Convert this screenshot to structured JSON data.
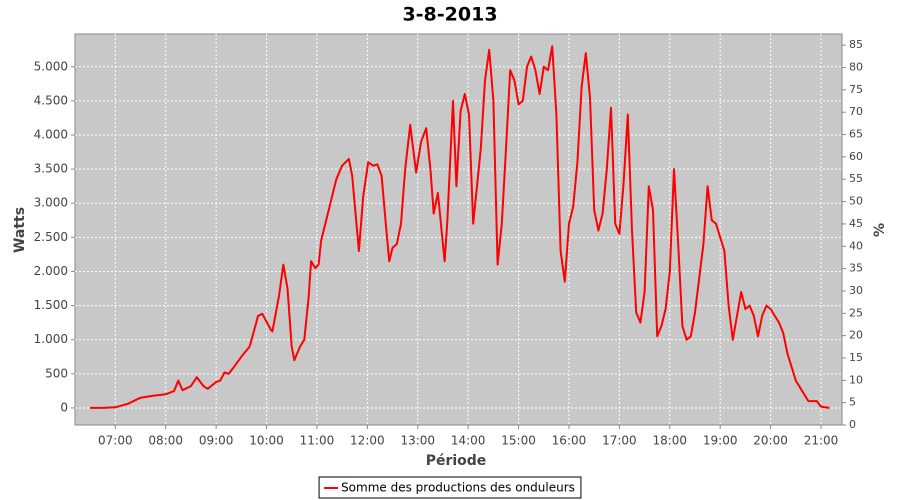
{
  "chart_data": {
    "type": "line",
    "title": "3-8-2013",
    "x_label": "Période",
    "y_label": "Watts",
    "y2_label": "%",
    "x": [
      390,
      405,
      420,
      435,
      450,
      465,
      480,
      490,
      495,
      500,
      510,
      517,
      525,
      530,
      540,
      545,
      550,
      555,
      560,
      570,
      580,
      590,
      595,
      605,
      607,
      615,
      620,
      625,
      630,
      633,
      640,
      645,
      650,
      653,
      658,
      662,
      665,
      676,
      683,
      690,
      698,
      702,
      710,
      715,
      721,
      727,
      732,
      737,
      742,
      746,
      750,
      755,
      760,
      765,
      771,
      778,
      784,
      790,
      795,
      799,
      804,
      812,
      815,
      822,
      826,
      831,
      836,
      841,
      846,
      855,
      860,
      865,
      870,
      875,
      880,
      885,
      890,
      895,
      900,
      905,
      910,
      915,
      920,
      925,
      930,
      935,
      940,
      945,
      950,
      955,
      960,
      965,
      970,
      975,
      980,
      985,
      990,
      995,
      1000,
      1005,
      1010,
      1015,
      1020,
      1025,
      1030,
      1035,
      1040,
      1045,
      1050,
      1055,
      1060,
      1065,
      1070,
      1075,
      1080,
      1085,
      1090,
      1095,
      1100,
      1105,
      1110,
      1120,
      1125,
      1130,
      1135,
      1145,
      1150,
      1155,
      1160,
      1165,
      1170,
      1175,
      1180,
      1185,
      1190,
      1195,
      1200,
      1210,
      1215,
      1220,
      1230,
      1240,
      1245,
      1255,
      1260,
      1270
    ],
    "series": [
      {
        "name": "Somme des productions des onduleurs",
        "color": "#ff0000",
        "values": [
          0,
          0,
          10,
          60,
          150,
          180,
          200,
          250,
          400,
          260,
          320,
          450,
          320,
          280,
          380,
          400,
          520,
          500,
          580,
          750,
          900,
          1350,
          1380,
          1150,
          1120,
          1650,
          2100,
          1750,
          900,
          700,
          900,
          1000,
          1600,
          2150,
          2050,
          2100,
          2450,
          3000,
          3350,
          3550,
          3650,
          3400,
          2300,
          3100,
          3600,
          3550,
          3570,
          3400,
          2700,
          2150,
          2350,
          2400,
          2700,
          3500,
          4150,
          3450,
          3900,
          4100,
          3500,
          2850,
          3150,
          2150,
          2700,
          4500,
          3250,
          4350,
          4600,
          4300,
          2700,
          3800,
          4800,
          5250,
          4500,
          2100,
          2700,
          3800,
          4950,
          4800,
          4450,
          4500,
          5000,
          5150,
          4950,
          4600,
          5000,
          4950,
          5300,
          4300,
          2300,
          1850,
          2700,
          2950,
          3600,
          4700,
          5200,
          4550,
          2900,
          2600,
          2850,
          3500,
          4400,
          2700,
          2550,
          3300,
          4300,
          2600,
          1400,
          1250,
          1700,
          3250,
          2900,
          1050,
          1200,
          1450,
          2000,
          3500,
          2400,
          1200,
          1000,
          1050,
          1400,
          2400,
          3250,
          2750,
          2700,
          2300,
          1500,
          1000,
          1350,
          1700,
          1450,
          1500,
          1350,
          1050,
          1350,
          1500,
          1450,
          1250,
          1100,
          800,
          400,
          200,
          100,
          100,
          20,
          0
        ]
      }
    ],
    "xlim": [
      372,
      1285
    ],
    "xticks": [
      {
        "value": 420,
        "label": "07:00"
      },
      {
        "value": 480,
        "label": "08:00"
      },
      {
        "value": 540,
        "label": "09:00"
      },
      {
        "value": 600,
        "label": "10:00"
      },
      {
        "value": 660,
        "label": "11:00"
      },
      {
        "value": 720,
        "label": "12:00"
      },
      {
        "value": 780,
        "label": "13:00"
      },
      {
        "value": 840,
        "label": "14:00"
      },
      {
        "value": 900,
        "label": "15:00"
      },
      {
        "value": 960,
        "label": "16:00"
      },
      {
        "value": 1020,
        "label": "17:00"
      },
      {
        "value": 1080,
        "label": "18:00"
      },
      {
        "value": 1140,
        "label": "19:00"
      },
      {
        "value": 1200,
        "label": "20:00"
      },
      {
        "value": 1260,
        "label": "21:00"
      }
    ],
    "ylim": [
      -250,
      5480
    ],
    "yticks": [
      0,
      500,
      {
        "value": 1000,
        "label": "1.000"
      },
      {
        "value": 1500,
        "label": "1.500"
      },
      {
        "value": 2000,
        "label": "2.000"
      },
      {
        "value": 2500,
        "label": "2.500"
      },
      {
        "value": 3000,
        "label": "3.000"
      },
      {
        "value": 3500,
        "label": "3.500"
      },
      {
        "value": 4000,
        "label": "4.000"
      },
      {
        "value": 4500,
        "label": "4.500"
      },
      {
        "value": 5000,
        "label": "5.000"
      }
    ],
    "y2lim": [
      0,
      87.5
    ],
    "y2ticks": [
      0,
      5,
      10,
      15,
      20,
      25,
      30,
      35,
      40,
      45,
      50,
      55,
      60,
      65,
      70,
      75,
      80,
      85
    ],
    "grid": true,
    "legend": "bottom"
  }
}
